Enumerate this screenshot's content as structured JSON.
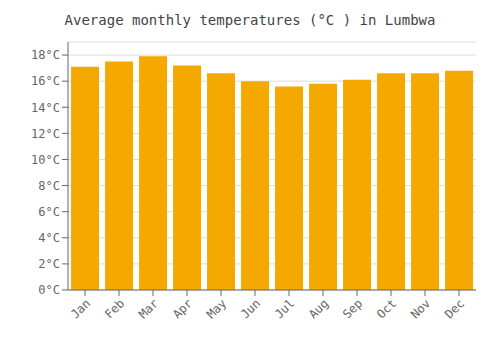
{
  "chart_data": {
    "type": "bar",
    "title": "Average monthly temperatures (°C ) in Lumbwa",
    "categories": [
      "Jan",
      "Feb",
      "Mar",
      "Apr",
      "May",
      "Jun",
      "Jul",
      "Aug",
      "Sep",
      "Oct",
      "Nov",
      "Dec"
    ],
    "values": [
      17.1,
      17.5,
      17.9,
      17.2,
      16.6,
      16.0,
      15.6,
      15.8,
      16.1,
      16.6,
      16.6,
      16.8
    ],
    "color": "#F5A800",
    "ylim": [
      0,
      19
    ],
    "yticks": [
      {
        "value": 0,
        "label": "0°C"
      },
      {
        "value": 2,
        "label": "2°C"
      },
      {
        "value": 4,
        "label": "4°C"
      },
      {
        "value": 6,
        "label": "6°C"
      },
      {
        "value": 8,
        "label": "8°C"
      },
      {
        "value": 10,
        "label": "10°C"
      },
      {
        "value": 12,
        "label": "12°C"
      },
      {
        "value": 14,
        "label": "14°C"
      },
      {
        "value": 16,
        "label": "16°C"
      },
      {
        "value": 18,
        "label": "18°C"
      }
    ],
    "grid": true
  }
}
